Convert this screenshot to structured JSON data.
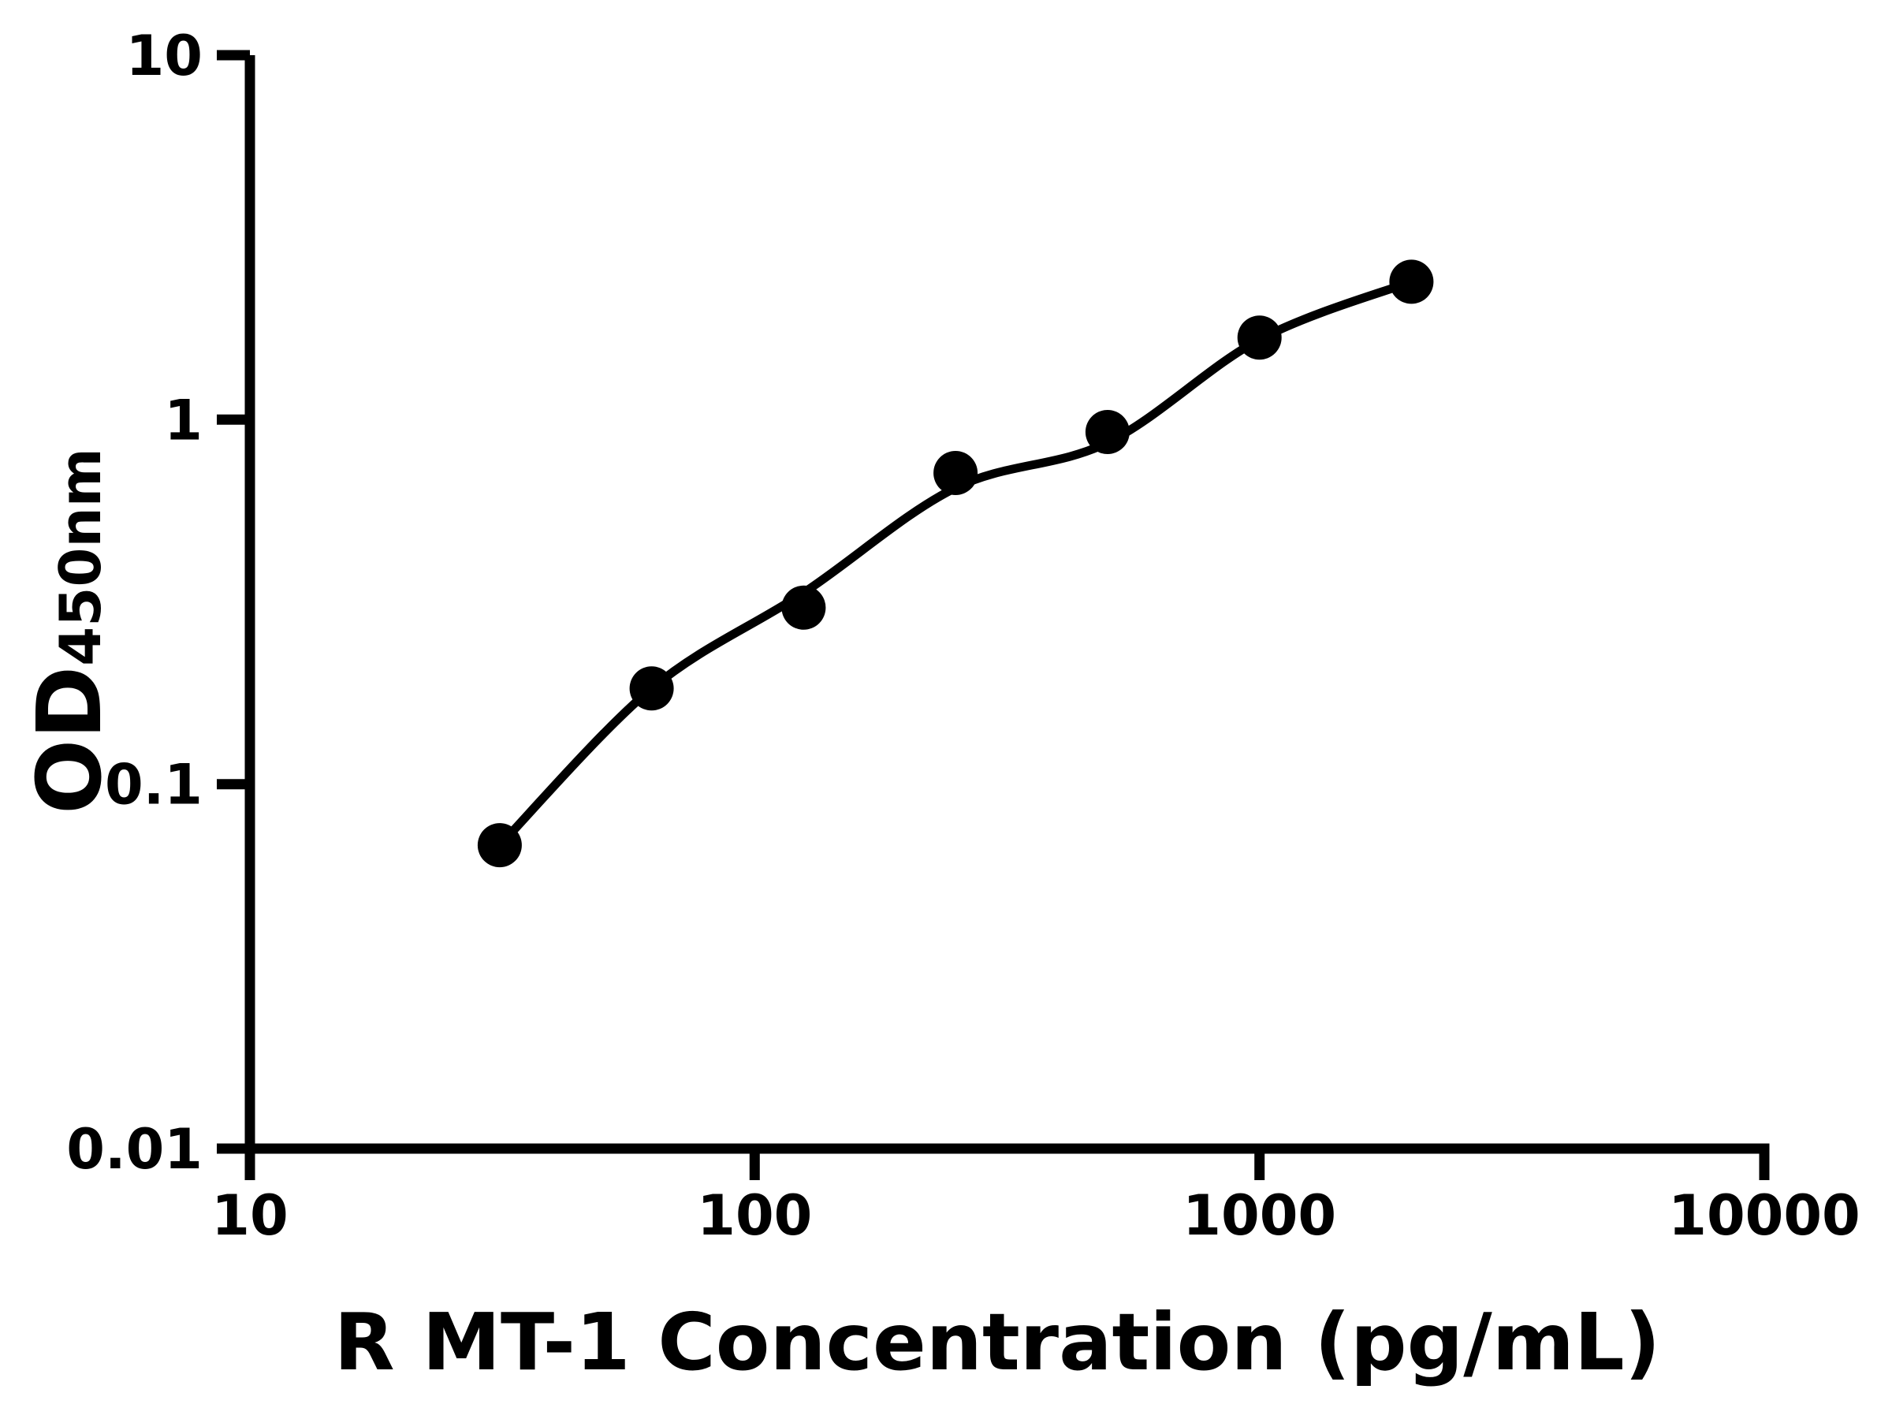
{
  "page": {
    "background_color": "#ffffff",
    "foreground_color": "#000000"
  },
  "chart_data": {
    "type": "scatter",
    "subtype": "elisa-standard-curve",
    "title": "",
    "xlabel": "R MT-1 Concentration (pg/mL)",
    "ylabel": "OD450nm",
    "ylabel_main": "OD",
    "ylabel_sub": "450nm",
    "x_scale": "log10",
    "y_scale": "log10",
    "xlim": [
      10,
      10000
    ],
    "ylim": [
      0.01,
      10
    ],
    "grid": false,
    "legend": "none",
    "axis_color": "#000000",
    "marker_color": "#000000",
    "line_color": "#000000",
    "x_ticks": [
      {
        "value": 10,
        "label": "10"
      },
      {
        "value": 100,
        "label": "100"
      },
      {
        "value": 1000,
        "label": "1000"
      },
      {
        "value": 10000,
        "label": "10000"
      }
    ],
    "y_ticks": [
      {
        "value": 10,
        "label": "10"
      },
      {
        "value": 1,
        "label": "1"
      },
      {
        "value": 0.1,
        "label": "0.1"
      },
      {
        "value": 0.01,
        "label": "0.01"
      }
    ],
    "series": [
      {
        "role": "standards",
        "type": "scatter",
        "marker": "filled-circle",
        "color": "#000000",
        "points": [
          {
            "x": 31.25,
            "y": 0.068
          },
          {
            "x": 62.5,
            "y": 0.183
          },
          {
            "x": 125,
            "y": 0.305
          },
          {
            "x": 250,
            "y": 0.714
          },
          {
            "x": 500,
            "y": 0.925
          },
          {
            "x": 1000,
            "y": 1.68
          },
          {
            "x": 2000,
            "y": 2.39
          }
        ]
      },
      {
        "role": "fit",
        "type": "line",
        "color": "#000000",
        "points": [
          {
            "x": 31.25,
            "y": 0.068
          },
          {
            "x": 62.5,
            "y": 0.183
          },
          {
            "x": 125,
            "y": 0.335
          },
          {
            "x": 250,
            "y": 0.65
          },
          {
            "x": 500,
            "y": 0.865
          },
          {
            "x": 1000,
            "y": 1.66
          },
          {
            "x": 2000,
            "y": 2.39
          }
        ]
      }
    ]
  }
}
